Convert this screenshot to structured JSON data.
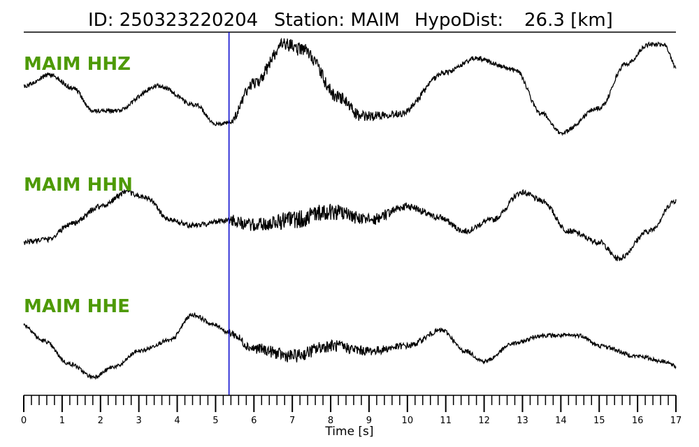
{
  "figure": {
    "title_id": "ID: 250323220204",
    "title_station": "Station: MAIM",
    "title_dist_label": "HypoDist:",
    "title_dist_value": "26.3 [km]"
  },
  "chart_data": {
    "type": "line",
    "xlabel": "Time [s]",
    "xlim": [
      0,
      17
    ],
    "xticks": [
      "0",
      "1",
      "2",
      "3",
      "4",
      "5",
      "6",
      "7",
      "8",
      "9",
      "10",
      "11",
      "12",
      "13",
      "14",
      "15",
      "16",
      "17"
    ],
    "minor_tick_step": 0.2,
    "pick_time": 5.35,
    "colors": {
      "trace": "#000000",
      "pick": "#0000cc",
      "label": "#4e9a06"
    },
    "series": [
      {
        "name": "MAIM HHZ",
        "ylim": [
          -1,
          1
        ],
        "noise_sigma": 0.04,
        "keyframes": [
          [
            0,
            0.1
          ],
          [
            0.7,
            0.3
          ],
          [
            1.3,
            0.05
          ],
          [
            1.8,
            -0.35
          ],
          [
            2.4,
            -0.35
          ],
          [
            3.5,
            0.1
          ],
          [
            4.5,
            -0.25
          ],
          [
            5.0,
            -0.6
          ],
          [
            5.35,
            -0.55
          ],
          [
            6.0,
            0.15
          ],
          [
            6.8,
            0.85
          ],
          [
            7.3,
            0.75
          ],
          [
            8.2,
            -0.1
          ],
          [
            8.8,
            -0.45
          ],
          [
            9.8,
            -0.4
          ],
          [
            11.0,
            0.35
          ],
          [
            11.8,
            0.6
          ],
          [
            12.8,
            0.4
          ],
          [
            13.5,
            -0.4
          ],
          [
            14.0,
            -0.75
          ],
          [
            15.0,
            -0.3
          ],
          [
            15.7,
            0.5
          ],
          [
            16.3,
            0.85
          ],
          [
            16.7,
            0.85
          ],
          [
            17.0,
            0.45
          ]
        ]
      },
      {
        "name": "MAIM HHN",
        "ylim": [
          -1,
          1
        ],
        "noise_sigma": 0.05,
        "keyframes": [
          [
            0,
            -0.45
          ],
          [
            0.6,
            -0.4
          ],
          [
            1.3,
            -0.1
          ],
          [
            2.0,
            0.2
          ],
          [
            2.7,
            0.45
          ],
          [
            3.2,
            0.35
          ],
          [
            3.8,
            -0.05
          ],
          [
            4.4,
            -0.15
          ],
          [
            5.35,
            -0.05
          ],
          [
            6.0,
            -0.15
          ],
          [
            7.0,
            -0.05
          ],
          [
            8.0,
            0.1
          ],
          [
            9.0,
            -0.05
          ],
          [
            10.0,
            0.2
          ],
          [
            10.8,
            0.0
          ],
          [
            11.5,
            -0.25
          ],
          [
            12.2,
            -0.05
          ],
          [
            13.0,
            0.45
          ],
          [
            13.5,
            0.3
          ],
          [
            14.2,
            -0.25
          ],
          [
            15.0,
            -0.45
          ],
          [
            15.5,
            -0.75
          ],
          [
            16.3,
            -0.25
          ],
          [
            17.0,
            0.3
          ]
        ]
      },
      {
        "name": "MAIM HHE",
        "ylim": [
          -1,
          1
        ],
        "noise_sigma": 0.04,
        "keyframes": [
          [
            0,
            0.25
          ],
          [
            0.5,
            -0.05
          ],
          [
            1.2,
            -0.5
          ],
          [
            1.8,
            -0.75
          ],
          [
            2.4,
            -0.55
          ],
          [
            3.0,
            -0.25
          ],
          [
            3.8,
            -0.05
          ],
          [
            4.4,
            0.45
          ],
          [
            5.0,
            0.25
          ],
          [
            5.35,
            0.1
          ],
          [
            6.0,
            -0.2
          ],
          [
            7.0,
            -0.35
          ],
          [
            8.0,
            -0.15
          ],
          [
            9.0,
            -0.25
          ],
          [
            10.0,
            -0.15
          ],
          [
            10.9,
            0.15
          ],
          [
            11.5,
            -0.25
          ],
          [
            12.0,
            -0.45
          ],
          [
            12.8,
            -0.1
          ],
          [
            13.5,
            0.05
          ],
          [
            14.5,
            0.05
          ],
          [
            15.0,
            -0.15
          ],
          [
            16.0,
            -0.35
          ],
          [
            16.7,
            -0.45
          ],
          [
            17.0,
            -0.55
          ]
        ]
      }
    ]
  }
}
